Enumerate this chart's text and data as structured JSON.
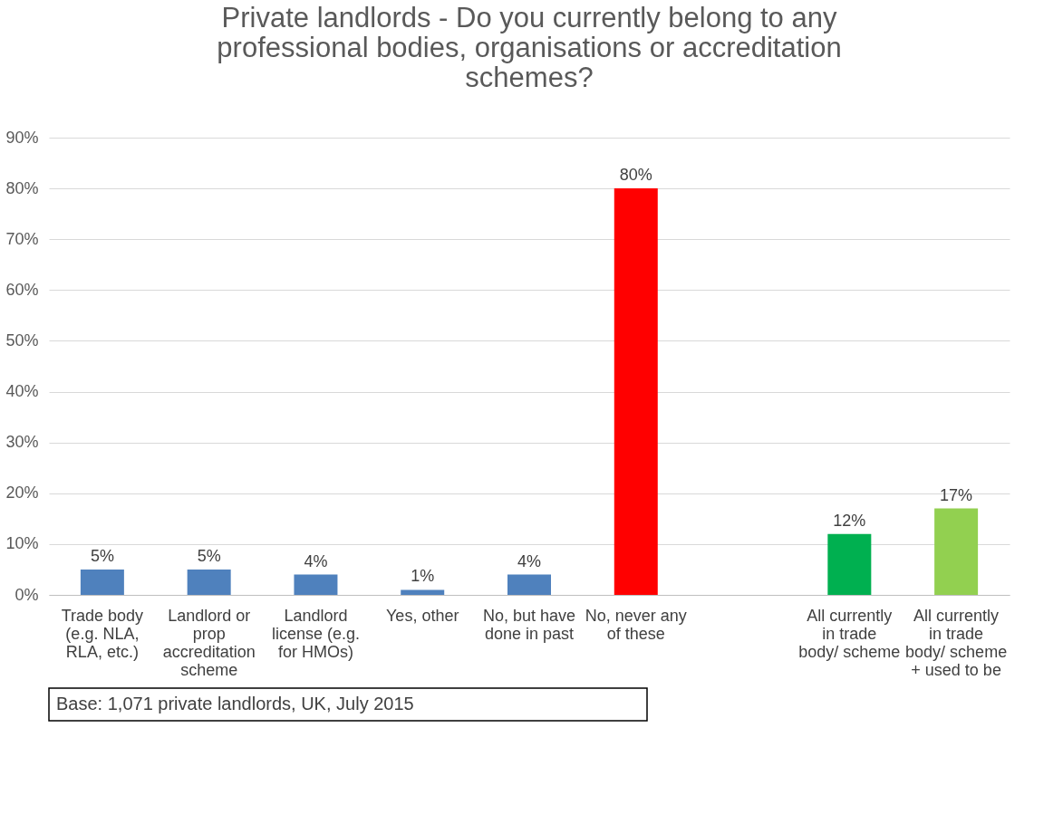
{
  "chart_data": {
    "type": "bar",
    "title": "Private landlords - Do you currently belong to any professional bodies, organisations or accreditation schemes?",
    "categories": [
      "Trade body (e.g. NLA, RLA, etc.)",
      "Landlord or prop accreditation scheme",
      "Landlord license (e.g. for HMOs)",
      "Yes, other",
      "No, but have done in past",
      "No, never any of these",
      null,
      "All currently in trade body/ scheme",
      "All currently in trade body/ scheme + used to be"
    ],
    "values": [
      5,
      5,
      4,
      1,
      4,
      80,
      null,
      12,
      17
    ],
    "colors": [
      "#4f81bd",
      "#4f81bd",
      "#4f81bd",
      "#4f81bd",
      "#4f81bd",
      "#ff0000",
      "#4f81bd",
      "#00b050",
      "#92d050"
    ],
    "value_labels": [
      "5%",
      "5%",
      "4%",
      "1%",
      "4%",
      "80%",
      null,
      "12%",
      "17%"
    ],
    "ylim": [
      0,
      90
    ],
    "yticks": [
      {
        "value": 0,
        "label": "0%"
      },
      {
        "value": 10,
        "label": "10%"
      },
      {
        "value": 20,
        "label": "20%"
      },
      {
        "value": 30,
        "label": "30%"
      },
      {
        "value": 40,
        "label": "40%"
      },
      {
        "value": 50,
        "label": "50%"
      },
      {
        "value": 60,
        "label": "60%"
      },
      {
        "value": 70,
        "label": "70%"
      },
      {
        "value": 80,
        "label": "80%"
      },
      {
        "value": 90,
        "label": "90%"
      }
    ],
    "grid": "y",
    "annotations": [
      "Base: 1,071 private landlords, UK, July 2015"
    ]
  }
}
